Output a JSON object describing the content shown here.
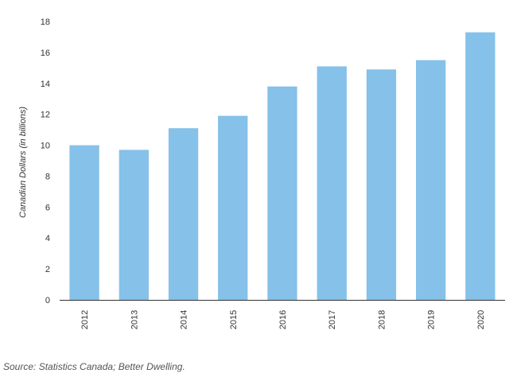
{
  "colors": {
    "bar": "#85c1e9",
    "axis": "#333333"
  },
  "source_text": "Source: Statistics Canada; Better Dwelling.",
  "chart_data": {
    "type": "bar",
    "ylabel": "Canadian Dollars (in billions)",
    "xlabel": "",
    "title": "",
    "categories": [
      "2012",
      "2013",
      "2014",
      "2015",
      "2016",
      "2017",
      "2018",
      "2019",
      "2020"
    ],
    "values": [
      10.0,
      9.7,
      11.1,
      11.9,
      13.8,
      15.1,
      14.9,
      15.5,
      17.3
    ],
    "ylim": [
      0,
      18
    ],
    "yticks": [
      0,
      2,
      4,
      6,
      8,
      10,
      12,
      14,
      16,
      18
    ],
    "grid": false,
    "legend": "none"
  }
}
